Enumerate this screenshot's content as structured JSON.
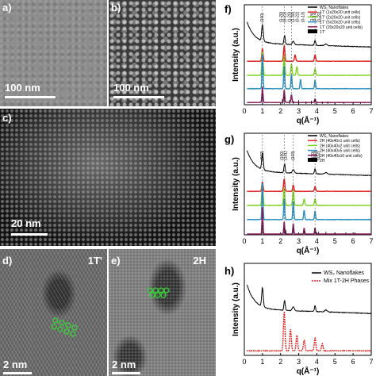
{
  "panels": {
    "a": {
      "label": "a)",
      "scale": "100 nm"
    },
    "b": {
      "label": "b)",
      "scale": "100 nm"
    },
    "c": {
      "label": "c)",
      "scale": "20 nm"
    },
    "d": {
      "label": "d)",
      "phase": "1T'",
      "scale": "2 nm"
    },
    "e": {
      "label": "e)",
      "phase": "2H",
      "scale": "2 nm"
    }
  },
  "highlight_color": "#3ad13a",
  "chart_data": [
    {
      "panel": "f)",
      "type": "line",
      "xlabel": "q(Å⁻¹)",
      "ylabel": "Intensity (a.u.)",
      "xlim": [
        0,
        7
      ],
      "xticks": [
        0,
        1,
        2,
        3,
        4,
        5,
        6,
        7
      ],
      "legend_position": "top-right",
      "series": [
        {
          "name": "WS₂ Nanoflakes",
          "color": "#000000"
        },
        {
          "name": "1T' (1x20x20 unit cells)",
          "color": "#e02020"
        },
        {
          "name": "1T' (2x20x20 unit cells)",
          "color": "#7ed321"
        },
        {
          "name": "1T' (5x20x20 unit cells)",
          "color": "#2a8fc4"
        },
        {
          "name": "1T' (20x20x20 unit cells)",
          "color": "#8b1a5c"
        },
        {
          "name": "1T'",
          "color": "#000000"
        }
      ],
      "peak_annotations": [
        "(100)",
        "(1-20)",
        "(0-22)",
        "(1-20)",
        "(1-30)",
        "(0-22)",
        "(0-13)",
        "(1-24)",
        "(0-14)",
        "(1-22)"
      ]
    },
    {
      "panel": "g)",
      "type": "line",
      "xlabel": "q(Å⁻¹)",
      "ylabel": "Intensity (a.u.)",
      "xlim": [
        0,
        7
      ],
      "xticks": [
        0,
        1,
        2,
        3,
        4,
        5,
        6,
        7
      ],
      "legend_position": "top-right",
      "series": [
        {
          "name": "WS₂ Nanoflakes",
          "color": "#000000"
        },
        {
          "name": "2H (40x40x1 unit cells)",
          "color": "#e02020"
        },
        {
          "name": "2H (40x40x2 unit cells)",
          "color": "#7ed321"
        },
        {
          "name": "2H (40x40x5 unit cells)",
          "color": "#2a8fc4"
        },
        {
          "name": "2H (40x40x10 unit cells)",
          "color": "#8b1a5c"
        },
        {
          "name": "2H",
          "color": "#000000"
        }
      ],
      "peak_annotations": [
        "(002)",
        "(100)",
        "(101)",
        "(103)",
        "(110)",
        "(006)",
        "(112)"
      ]
    },
    {
      "panel": "h)",
      "type": "line",
      "xlabel": "q(Å⁻¹)",
      "ylabel": "Intensity (a.u.)",
      "xlim": [
        0,
        7
      ],
      "xticks": [
        0,
        1,
        2,
        3,
        4,
        5,
        6,
        7
      ],
      "legend_position": "top-right",
      "series": [
        {
          "name": "WS₂ Nanoflakes",
          "color": "#000000"
        },
        {
          "name": "Mix 1T-2H Phases",
          "color": "#e02020"
        }
      ]
    }
  ]
}
